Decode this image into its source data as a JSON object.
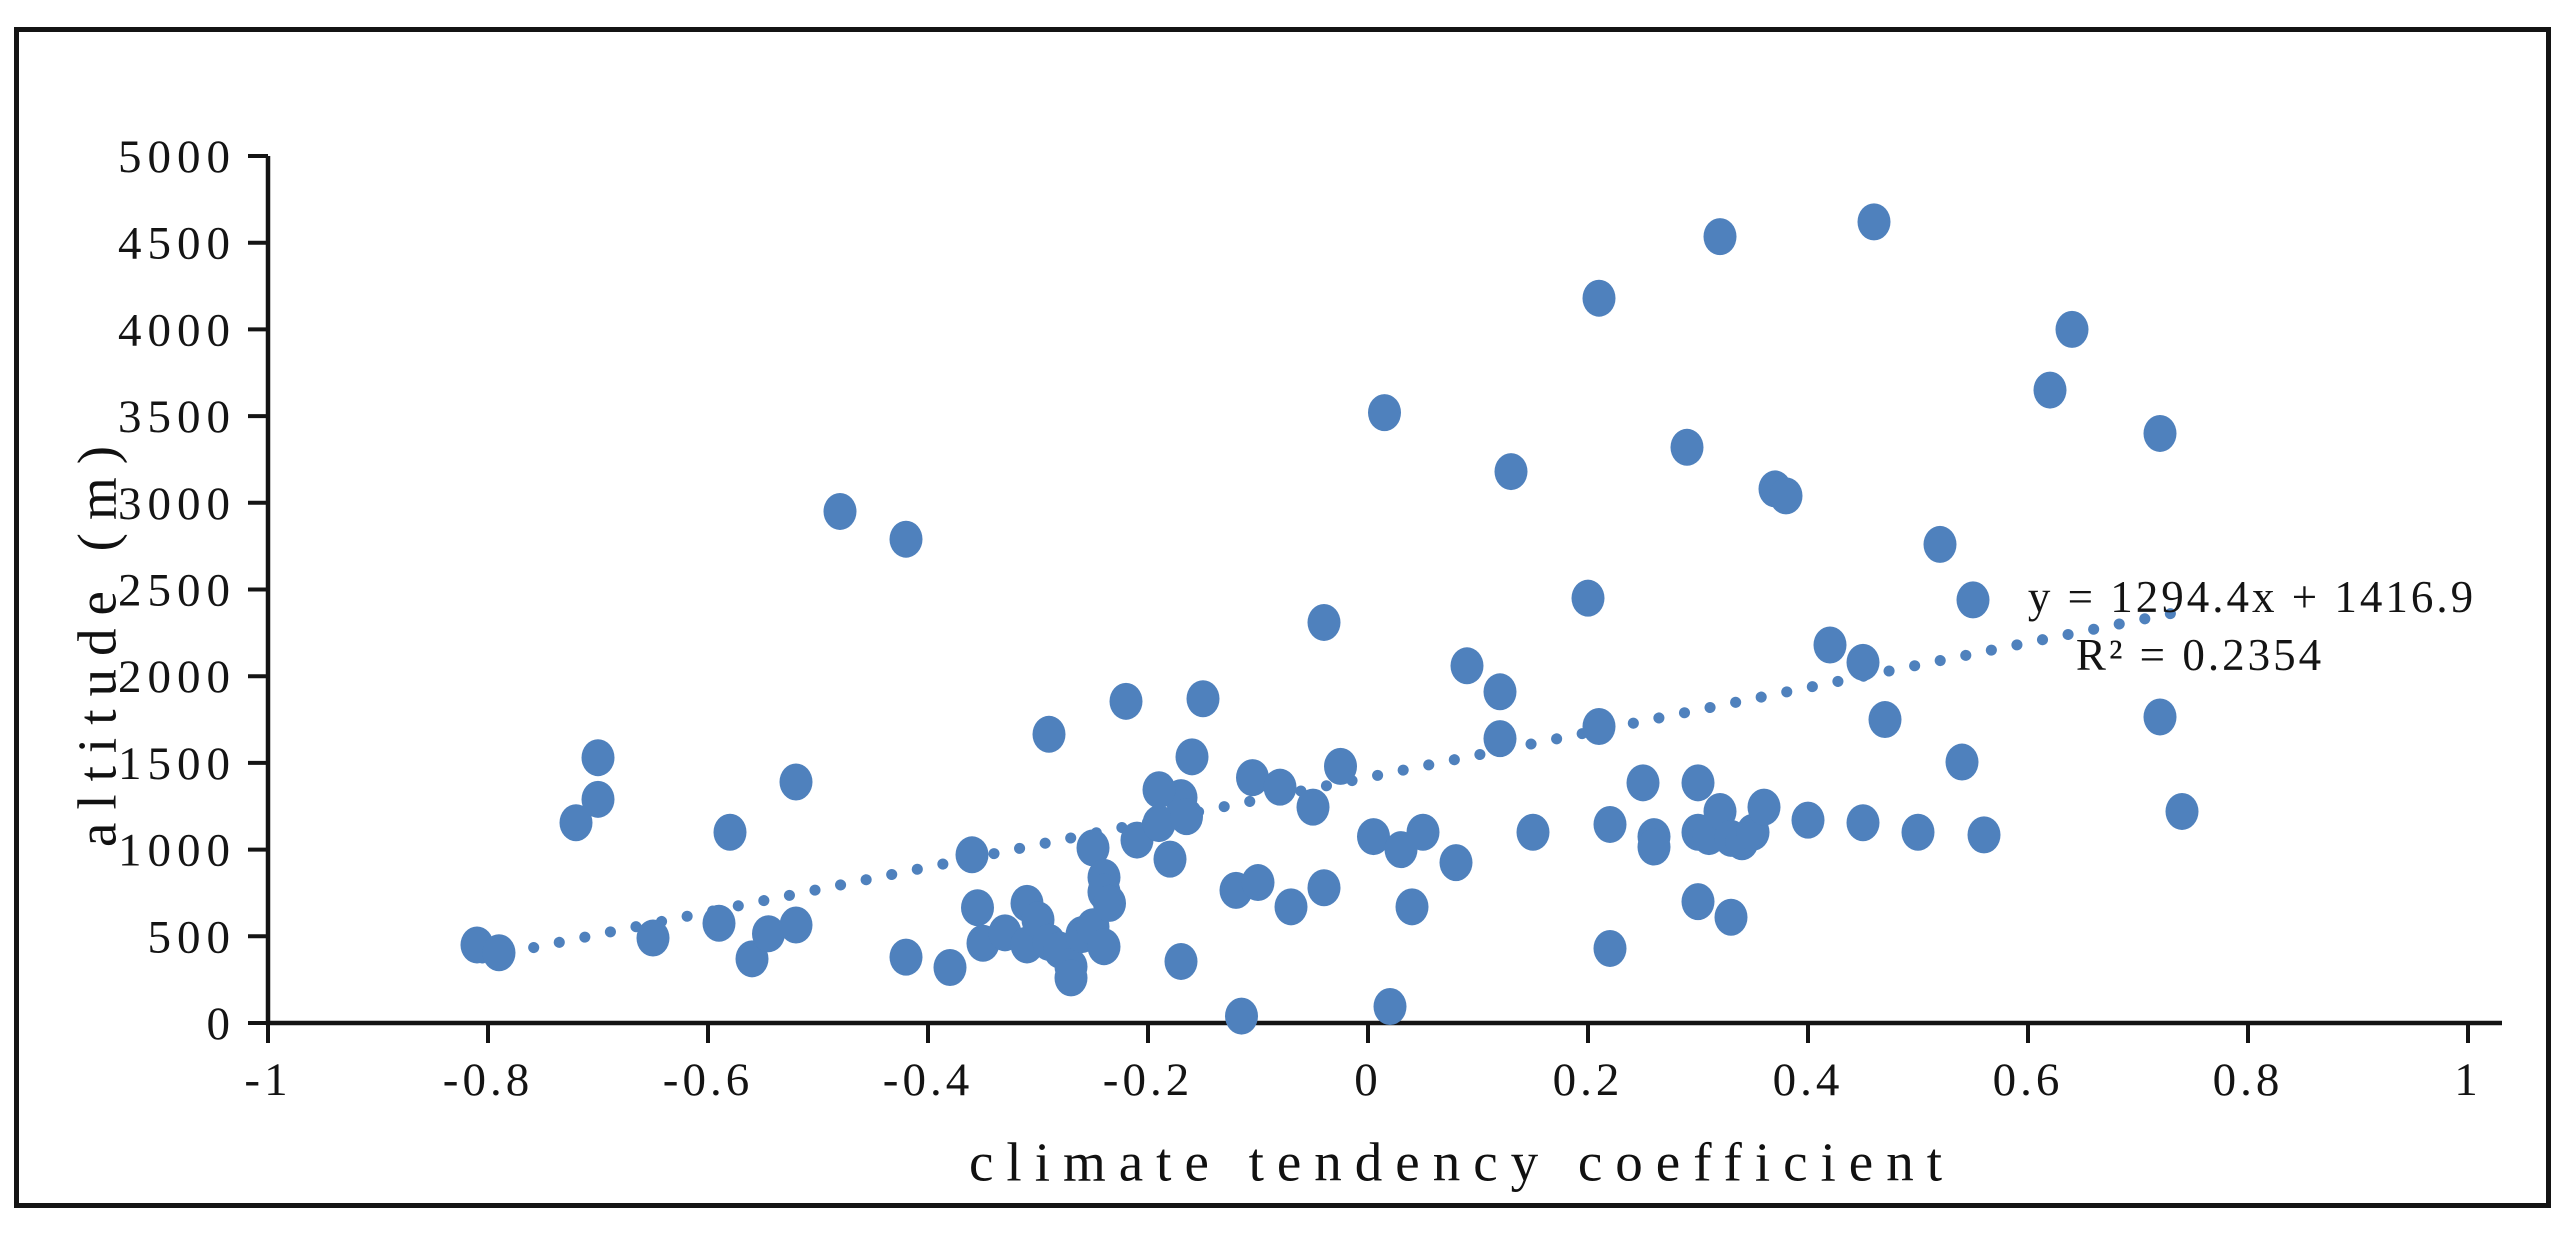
{
  "chart_data": {
    "type": "scatter",
    "title": "",
    "xlabel": "climate tendency coefficient",
    "ylabel": "altitude (m)",
    "xlim": [
      -1,
      1
    ],
    "ylim": [
      0,
      5000
    ],
    "grid": false,
    "legend_position": "none",
    "marker_color": "#4f81bd",
    "axis_color": "#141414",
    "xticks": [
      -1,
      -0.8,
      -0.6,
      -0.4,
      -0.2,
      0,
      0.2,
      0.4,
      0.6,
      0.8,
      1
    ],
    "xtick_labels": [
      "-1",
      "-0.8",
      "-0.6",
      "-0.4",
      "-0.2",
      "0",
      "0.2",
      "0.4",
      "0.6",
      "0.8",
      "1"
    ],
    "yticks": [
      0,
      500,
      1000,
      1500,
      2000,
      2500,
      3000,
      3500,
      4000,
      4500,
      5000
    ],
    "ytick_labels": [
      "0",
      "500",
      "1000",
      "1500",
      "2000",
      "2500",
      "3000",
      "3500",
      "4000",
      "4500",
      "5000"
    ],
    "trendline": {
      "equation": "y = 1294.4x + 1416.9",
      "r_squared_label": "R² = 0.2354",
      "slope": 1294.4,
      "intercept": 1416.9,
      "x_start": -0.805,
      "x_end": 0.738,
      "style": "dotted",
      "color": "#4f81bd"
    },
    "points": [
      [
        -0.81,
        450
      ],
      [
        -0.79,
        405
      ],
      [
        -0.72,
        1155
      ],
      [
        -0.7,
        1530
      ],
      [
        -0.7,
        1290
      ],
      [
        -0.65,
        490
      ],
      [
        -0.59,
        575
      ],
      [
        -0.58,
        1100
      ],
      [
        -0.56,
        370
      ],
      [
        -0.545,
        515
      ],
      [
        -0.52,
        565
      ],
      [
        -0.52,
        1390
      ],
      [
        -0.48,
        2950
      ],
      [
        -0.42,
        2790
      ],
      [
        -0.42,
        380
      ],
      [
        -0.38,
        320
      ],
      [
        -0.36,
        970
      ],
      [
        -0.355,
        665
      ],
      [
        -0.35,
        460
      ],
      [
        -0.31,
        690
      ],
      [
        -0.33,
        520
      ],
      [
        -0.31,
        450
      ],
      [
        -0.3,
        595
      ],
      [
        -0.29,
        465
      ],
      [
        -0.28,
        420
      ],
      [
        -0.27,
        325
      ],
      [
        -0.27,
        260
      ],
      [
        -0.26,
        510
      ],
      [
        -0.25,
        555
      ],
      [
        -0.24,
        440
      ],
      [
        -0.25,
        1010
      ],
      [
        -0.24,
        840
      ],
      [
        -0.24,
        755
      ],
      [
        -0.235,
        690
      ],
      [
        -0.29,
        1665
      ],
      [
        -0.22,
        1855
      ],
      [
        -0.15,
        1870
      ],
      [
        -0.21,
        1055
      ],
      [
        -0.19,
        1150
      ],
      [
        -0.18,
        945
      ],
      [
        -0.17,
        1300
      ],
      [
        -0.165,
        1190
      ],
      [
        -0.19,
        1345
      ],
      [
        -0.16,
        1535
      ],
      [
        -0.105,
        1415
      ],
      [
        -0.08,
        1360
      ],
      [
        -0.12,
        765
      ],
      [
        -0.1,
        810
      ],
      [
        -0.17,
        355
      ],
      [
        -0.115,
        40
      ],
      [
        -0.05,
        1245
      ],
      [
        -0.025,
        1480
      ],
      [
        -0.04,
        2310
      ],
      [
        -0.07,
        670
      ],
      [
        -0.04,
        780
      ],
      [
        0.005,
        1075
      ],
      [
        0.03,
        1000
      ],
      [
        0.05,
        1100
      ],
      [
        0.02,
        95
      ],
      [
        0.04,
        670
      ],
      [
        0.015,
        3520
      ],
      [
        0.08,
        925
      ],
      [
        0.09,
        2060
      ],
      [
        0.12,
        1910
      ],
      [
        0.12,
        1640
      ],
      [
        0.13,
        3180
      ],
      [
        0.15,
        1100
      ],
      [
        0.2,
        2450
      ],
      [
        0.21,
        4180
      ],
      [
        0.21,
        1710
      ],
      [
        0.22,
        1145
      ],
      [
        0.22,
        430
      ],
      [
        0.25,
        1385
      ],
      [
        0.26,
        1075
      ],
      [
        0.26,
        1015
      ],
      [
        0.3,
        1385
      ],
      [
        0.3,
        1100
      ],
      [
        0.3,
        700
      ],
      [
        0.31,
        1075
      ],
      [
        0.32,
        1220
      ],
      [
        0.33,
        1065
      ],
      [
        0.33,
        610
      ],
      [
        0.34,
        1045
      ],
      [
        0.35,
        1100
      ],
      [
        0.36,
        1245
      ],
      [
        0.29,
        3320
      ],
      [
        0.32,
        4535
      ],
      [
        0.37,
        3080
      ],
      [
        0.38,
        3040
      ],
      [
        0.4,
        1170
      ],
      [
        0.42,
        2180
      ],
      [
        0.45,
        2080
      ],
      [
        0.45,
        1155
      ],
      [
        0.46,
        4620
      ],
      [
        0.47,
        1750
      ],
      [
        0.5,
        1100
      ],
      [
        0.52,
        2760
      ],
      [
        0.54,
        1505
      ],
      [
        0.55,
        2440
      ],
      [
        0.56,
        1085
      ],
      [
        0.62,
        3650
      ],
      [
        0.64,
        4000
      ],
      [
        0.72,
        3400
      ],
      [
        0.72,
        1765
      ],
      [
        0.74,
        1220
      ]
    ]
  }
}
